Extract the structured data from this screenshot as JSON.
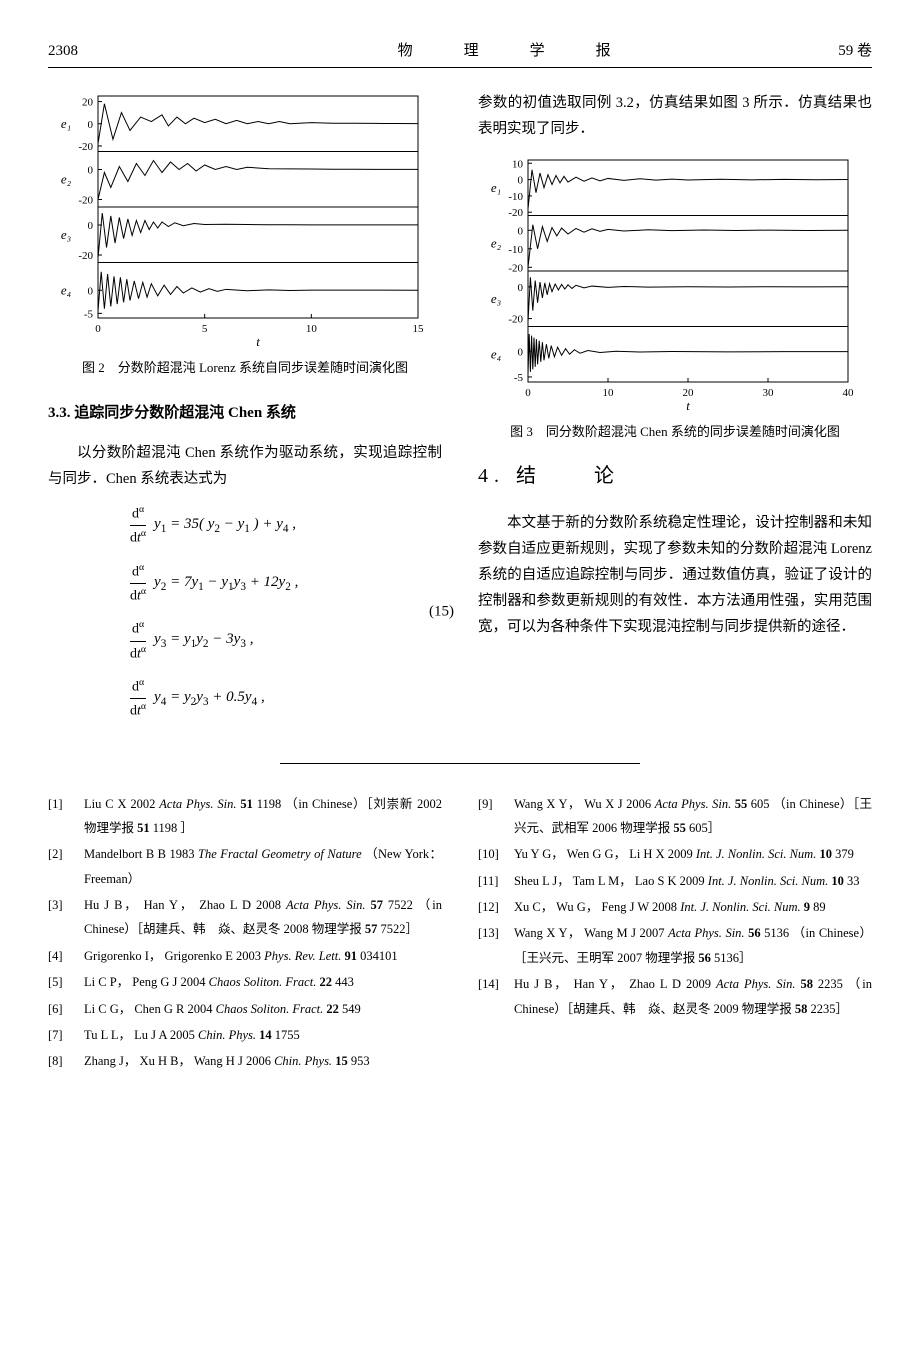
{
  "header": {
    "page_num": "2308",
    "center": "物　理　学　报",
    "right": "59 卷"
  },
  "fig2": {
    "caption": "图 2　分数阶超混沌 Lorenz 系统自同步误差随时间演化图",
    "xlabel": "t",
    "panels": [
      {
        "ylabel": "e₁",
        "yticks": [
          "20",
          "0",
          "-20"
        ],
        "ylim": [
          -25,
          25
        ]
      },
      {
        "ylabel": "e₂",
        "yticks": [
          "0",
          "-20"
        ],
        "ylim": [
          -25,
          12
        ]
      },
      {
        "ylabel": "e₃",
        "yticks": [
          "0",
          "-20"
        ],
        "ylim": [
          -25,
          12
        ]
      },
      {
        "ylabel": "e₄",
        "yticks": [
          "0",
          "-5"
        ],
        "ylim": [
          -6,
          6
        ]
      }
    ],
    "xticks": [
      "0",
      "5",
      "10",
      "15"
    ],
    "xlim": [
      0,
      15
    ],
    "line_color": "#000000",
    "bg": "#ffffff",
    "series": [
      [
        [
          0,
          -18
        ],
        [
          0.3,
          18
        ],
        [
          0.7,
          -14
        ],
        [
          1.1,
          10
        ],
        [
          1.5,
          -6
        ],
        [
          2,
          6
        ],
        [
          2.5,
          2
        ],
        [
          3,
          8
        ],
        [
          3.3,
          -2
        ],
        [
          3.7,
          6
        ],
        [
          4.1,
          0
        ],
        [
          4.5,
          5
        ],
        [
          5,
          1
        ],
        [
          5.5,
          4
        ],
        [
          6,
          0
        ],
        [
          6.5,
          3
        ],
        [
          7,
          0
        ],
        [
          7.5,
          2
        ],
        [
          8,
          0
        ],
        [
          8.5,
          2
        ],
        [
          9,
          0
        ],
        [
          10,
          1
        ],
        [
          11,
          0.5
        ],
        [
          12,
          0.4
        ],
        [
          13,
          0.3
        ],
        [
          14,
          0.2
        ],
        [
          15,
          0.1
        ]
      ],
      [
        [
          0,
          -20
        ],
        [
          0.3,
          -2
        ],
        [
          0.6,
          -12
        ],
        [
          1,
          2
        ],
        [
          1.4,
          -8
        ],
        [
          1.8,
          4
        ],
        [
          2.2,
          -4
        ],
        [
          2.6,
          6
        ],
        [
          3,
          -2
        ],
        [
          3.4,
          5
        ],
        [
          3.8,
          0
        ],
        [
          4.2,
          4
        ],
        [
          4.6,
          -1
        ],
        [
          5,
          3
        ],
        [
          5.5,
          0
        ],
        [
          6,
          2
        ],
        [
          6.5,
          0
        ],
        [
          7,
          1.5
        ],
        [
          8,
          0.5
        ],
        [
          9,
          0.4
        ],
        [
          10,
          0.3
        ],
        [
          11,
          0.2
        ],
        [
          12,
          0.15
        ],
        [
          13,
          0.12
        ],
        [
          14,
          0.1
        ],
        [
          15,
          0.08
        ]
      ],
      [
        [
          0,
          -22
        ],
        [
          0.2,
          8
        ],
        [
          0.4,
          -15
        ],
        [
          0.6,
          6
        ],
        [
          0.8,
          -12
        ],
        [
          1,
          5
        ],
        [
          1.2,
          -9
        ],
        [
          1.4,
          4
        ],
        [
          1.6,
          -7
        ],
        [
          1.8,
          3
        ],
        [
          2,
          -5
        ],
        [
          2.2,
          3
        ],
        [
          2.4,
          -3
        ],
        [
          2.6,
          2
        ],
        [
          2.8,
          -2
        ],
        [
          3,
          2
        ],
        [
          3.3,
          -1
        ],
        [
          3.6,
          1.5
        ],
        [
          4,
          -0.5
        ],
        [
          4.5,
          1
        ],
        [
          5,
          0.3
        ],
        [
          6,
          0.5
        ],
        [
          7,
          0.3
        ],
        [
          8,
          0.2
        ],
        [
          9,
          0.2
        ],
        [
          10,
          0.1
        ],
        [
          12,
          0.1
        ],
        [
          15,
          0.05
        ]
      ],
      [
        [
          0,
          -4.5
        ],
        [
          0.15,
          4
        ],
        [
          0.3,
          -4
        ],
        [
          0.45,
          3.5
        ],
        [
          0.6,
          -3.5
        ],
        [
          0.75,
          3
        ],
        [
          0.9,
          -3
        ],
        [
          1.05,
          2.8
        ],
        [
          1.2,
          -2.6
        ],
        [
          1.35,
          2.4
        ],
        [
          1.5,
          -2.2
        ],
        [
          1.7,
          2
        ],
        [
          1.9,
          -1.8
        ],
        [
          2.1,
          1.7
        ],
        [
          2.3,
          -1.5
        ],
        [
          2.5,
          1.4
        ],
        [
          2.8,
          -1.2
        ],
        [
          3.1,
          1.1
        ],
        [
          3.4,
          -0.9
        ],
        [
          3.7,
          0.8
        ],
        [
          4,
          -0.6
        ],
        [
          4.4,
          0.5
        ],
        [
          4.8,
          -0.4
        ],
        [
          5.2,
          0.35
        ],
        [
          5.6,
          -0.25
        ],
        [
          6,
          0.2
        ],
        [
          7,
          -0.1
        ],
        [
          8,
          0.08
        ],
        [
          9,
          -0.05
        ],
        [
          10,
          0.04
        ],
        [
          12,
          0.02
        ],
        [
          15,
          0.01
        ]
      ]
    ]
  },
  "fig3": {
    "caption": "图 3　同分数阶超混沌 Chen 系统的同步误差随时间演化图",
    "xlabel": "t",
    "panels": [
      {
        "ylabel": "e₁",
        "yticks": [
          "10",
          "0",
          "-10",
          "-20"
        ],
        "ylim": [
          -22,
          12
        ]
      },
      {
        "ylabel": "e₂",
        "yticks": [
          "0",
          "-10",
          "-20"
        ],
        "ylim": [
          -22,
          8
        ]
      },
      {
        "ylabel": "e₃",
        "yticks": [
          "0",
          "-20"
        ],
        "ylim": [
          -25,
          10
        ]
      },
      {
        "ylabel": "e₄",
        "yticks": [
          "0",
          "-5"
        ],
        "ylim": [
          -6,
          5
        ]
      }
    ],
    "xticks": [
      "0",
      "10",
      "20",
      "30",
      "40"
    ],
    "xlim": [
      0,
      40
    ],
    "line_color": "#000000",
    "bg": "#ffffff",
    "series": [
      [
        [
          0,
          -18
        ],
        [
          0.5,
          6
        ],
        [
          1,
          -8
        ],
        [
          1.5,
          4
        ],
        [
          2,
          -5
        ],
        [
          2.5,
          3
        ],
        [
          3,
          -3
        ],
        [
          3.5,
          2.5
        ],
        [
          4,
          -2
        ],
        [
          4.5,
          2
        ],
        [
          5,
          -1.5
        ],
        [
          6,
          1.5
        ],
        [
          7,
          -1
        ],
        [
          8,
          1
        ],
        [
          9,
          -0.8
        ],
        [
          10,
          0.7
        ],
        [
          12,
          -0.5
        ],
        [
          14,
          0.5
        ],
        [
          16,
          -0.3
        ],
        [
          18,
          0.3
        ],
        [
          20,
          -0.25
        ],
        [
          24,
          0.2
        ],
        [
          28,
          -0.15
        ],
        [
          32,
          0.12
        ],
        [
          36,
          -0.1
        ],
        [
          40,
          0.08
        ]
      ],
      [
        [
          0,
          -20
        ],
        [
          0.6,
          3
        ],
        [
          1.2,
          -10
        ],
        [
          1.8,
          2
        ],
        [
          2.4,
          -6
        ],
        [
          3,
          1.5
        ],
        [
          3.6,
          -3
        ],
        [
          4.2,
          1.2
        ],
        [
          5,
          -2
        ],
        [
          6,
          1
        ],
        [
          7,
          -1
        ],
        [
          8,
          0.8
        ],
        [
          9,
          -0.6
        ],
        [
          10,
          0.5
        ],
        [
          12,
          -0.4
        ],
        [
          15,
          0.3
        ],
        [
          18,
          -0.2
        ],
        [
          22,
          0.15
        ],
        [
          26,
          -0.12
        ],
        [
          30,
          0.1
        ],
        [
          35,
          -0.08
        ],
        [
          40,
          0.06
        ]
      ],
      [
        [
          0,
          -22
        ],
        [
          0.3,
          6
        ],
        [
          0.6,
          -15
        ],
        [
          0.9,
          4
        ],
        [
          1.2,
          -10
        ],
        [
          1.5,
          3
        ],
        [
          1.8,
          -7
        ],
        [
          2.1,
          2.5
        ],
        [
          2.4,
          -5
        ],
        [
          2.7,
          2
        ],
        [
          3,
          -3
        ],
        [
          3.4,
          1.8
        ],
        [
          3.8,
          -2
        ],
        [
          4.2,
          1.5
        ],
        [
          4.6,
          -1.4
        ],
        [
          5,
          1.3
        ],
        [
          5.5,
          -1
        ],
        [
          6,
          1
        ],
        [
          7,
          -0.6
        ],
        [
          8,
          0.5
        ],
        [
          10,
          -0.3
        ],
        [
          12,
          0.25
        ],
        [
          15,
          -0.15
        ],
        [
          20,
          0.1
        ],
        [
          25,
          -0.08
        ],
        [
          30,
          0.06
        ],
        [
          35,
          -0.05
        ],
        [
          40,
          0.04
        ]
      ],
      [
        [
          0,
          -4.5
        ],
        [
          0.15,
          3.5
        ],
        [
          0.3,
          -4
        ],
        [
          0.45,
          3.2
        ],
        [
          0.6,
          -3.5
        ],
        [
          0.75,
          2.8
        ],
        [
          0.9,
          -3
        ],
        [
          1.05,
          2.5
        ],
        [
          1.2,
          -2.5
        ],
        [
          1.4,
          2.2
        ],
        [
          1.6,
          -2
        ],
        [
          1.8,
          1.9
        ],
        [
          2,
          -1.7
        ],
        [
          2.3,
          1.5
        ],
        [
          2.6,
          -1.3
        ],
        [
          2.9,
          1.2
        ],
        [
          3.3,
          -1
        ],
        [
          3.7,
          0.9
        ],
        [
          4.2,
          -0.7
        ],
        [
          4.7,
          0.6
        ],
        [
          5.2,
          -0.5
        ],
        [
          5.8,
          0.4
        ],
        [
          6.5,
          -0.3
        ],
        [
          7.5,
          0.25
        ],
        [
          9,
          -0.15
        ],
        [
          11,
          0.1
        ],
        [
          14,
          -0.06
        ],
        [
          18,
          0.04
        ],
        [
          25,
          -0.02
        ],
        [
          32,
          0.015
        ],
        [
          40,
          0.01
        ]
      ]
    ]
  },
  "sec33_title": "3.3. 追踪同步分数阶超混沌 Chen 系统",
  "sec33_para": "以分数阶超混沌 Chen 系统作为驱动系统，实现追踪控制与同步．Chen 系统表达式为",
  "eq15": {
    "num": "(15)",
    "lines": [
      "y₁ = 35( y₂ − y₁ ) + y₄ ,",
      "y₂ = 7y₁ − y₁y₃ + 12y₂ ,",
      "y₃ = y₁y₂ − 3y₃ ,",
      "y₄ = y₂y₃ + 0.5y₄ ,"
    ],
    "deriv_html": {
      "num": "d<sup>α</sup>",
      "den": "d<i>t</i><sup>α</sup>"
    }
  },
  "right_para1": "参数的初值选取同例 3.2，仿真结果如图 3 所示．仿真结果也表明实现了同步．",
  "sec4_title": "4. 结　　论",
  "sec4_para": "本文基于新的分数阶系统稳定性理论，设计控制器和未知参数自适应更新规则，实现了参数未知的分数阶超混沌 Lorenz 系统的自适应追踪控制与同步．通过数值仿真，验证了设计的控制器和参数更新规则的有效性．本方法通用性强，实用范围宽，可以为各种条件下实现混沌控制与同步提供新的途径．",
  "refs_left": [
    {
      "n": "[1]",
      "t": "Liu C X 2002 <em>Acta Phys. Sin.</em> <b>51</b> 1198 （in Chinese）［刘崇新 2002 物理学报 <b>51</b> 1198 ］"
    },
    {
      "n": "[2]",
      "t": "Mandelbort B B 1983 <em>The Fractal Geometry of Nature</em> （New York： Freeman）"
    },
    {
      "n": "[3]",
      "t": "Hu J B， Han Y， Zhao L D 2008 <em>Acta Phys. Sin.</em> <b>57</b> 7522 （in Chinese）［胡建兵、韩　焱、赵灵冬 2008 物理学报 <b>57</b> 7522］"
    },
    {
      "n": "[4]",
      "t": "Grigorenko I， Grigorenko E 2003 <em>Phys. Rev. Lett.</em> <b>91</b> 034101"
    },
    {
      "n": "[5]",
      "t": "Li C P， Peng G J 2004 <em>Chaos Soliton. Fract.</em> <b>22</b> 443"
    },
    {
      "n": "[6]",
      "t": "Li C G， Chen G R 2004 <em>Chaos Soliton. Fract.</em> <b>22</b> 549"
    },
    {
      "n": "[7]",
      "t": "Tu L L， Lu J A 2005 <em>Chin. Phys.</em> <b>14</b> 1755"
    },
    {
      "n": "[8]",
      "t": "Zhang J， Xu H B， Wang H J 2006 <em>Chin. Phys.</em> <b>15</b> 953"
    }
  ],
  "refs_right": [
    {
      "n": "[9]",
      "t": "Wang X Y， Wu X J 2006 <em>Acta Phys. Sin.</em> <b>55</b> 605 （in Chinese）［王兴元、武相军 2006 物理学报 <b>55</b> 605］"
    },
    {
      "n": "[10]",
      "t": "Yu Y G， Wen G G， Li H X 2009 <em>Int. J. Nonlin. Sci. Num.</em> <b>10</b> 379"
    },
    {
      "n": "[11]",
      "t": "Sheu L J， Tam L M， Lao S K 2009 <em>Int. J. Nonlin. Sci. Num.</em> <b>10</b> 33"
    },
    {
      "n": "[12]",
      "t": "Xu C， Wu G， Feng J W 2008 <em>Int. J. Nonlin. Sci. Num.</em> <b>9</b> 89"
    },
    {
      "n": "[13]",
      "t": "Wang X Y， Wang M J 2007 <em>Acta Phys. Sin.</em> <b>56</b> 5136 （in Chinese）［王兴元、王明军 2007 物理学报 <b>56</b> 5136］"
    },
    {
      "n": "[14]",
      "t": "Hu J B， Han Y， Zhao L D 2009 <em>Acta Phys. Sin.</em> <b>58</b> 2235 （in Chinese）［胡建兵、韩　焱、赵灵冬 2009 物理学报 <b>58</b> 2235］"
    }
  ]
}
